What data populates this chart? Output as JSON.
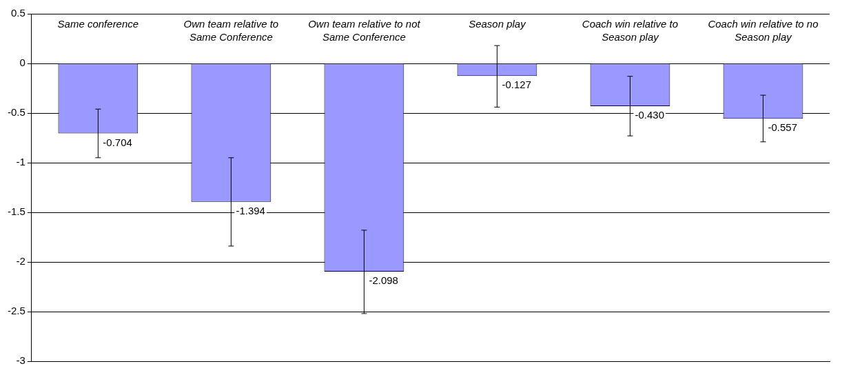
{
  "chart_data": {
    "type": "bar",
    "categories": [
      "Same conference",
      "Own team relative to Same Conference",
      "Own team relative to not Same Conference",
      "Season play",
      "Coach win relative to Season play",
      "Coach win relative to no Season play"
    ],
    "values": [
      -0.704,
      -1.394,
      -2.098,
      -0.127,
      -0.43,
      -0.557
    ],
    "value_labels": [
      "-0.704",
      "-1.394",
      "-2.098",
      "-0.127",
      "-0.430",
      "-0.557"
    ],
    "errors": [
      [
        -0.95,
        -0.46
      ],
      [
        -1.84,
        -0.95
      ],
      [
        -2.52,
        -1.68
      ],
      [
        -0.44,
        0.18
      ],
      [
        -0.73,
        -0.13
      ],
      [
        -0.79,
        -0.32
      ]
    ],
    "color": "#9999ff",
    "ylim": [
      -3,
      0.5
    ],
    "yticks": [
      0.5,
      0,
      -0.5,
      -1,
      -1.5,
      -2,
      -2.5,
      -3
    ],
    "grid": "y",
    "legend": false
  }
}
